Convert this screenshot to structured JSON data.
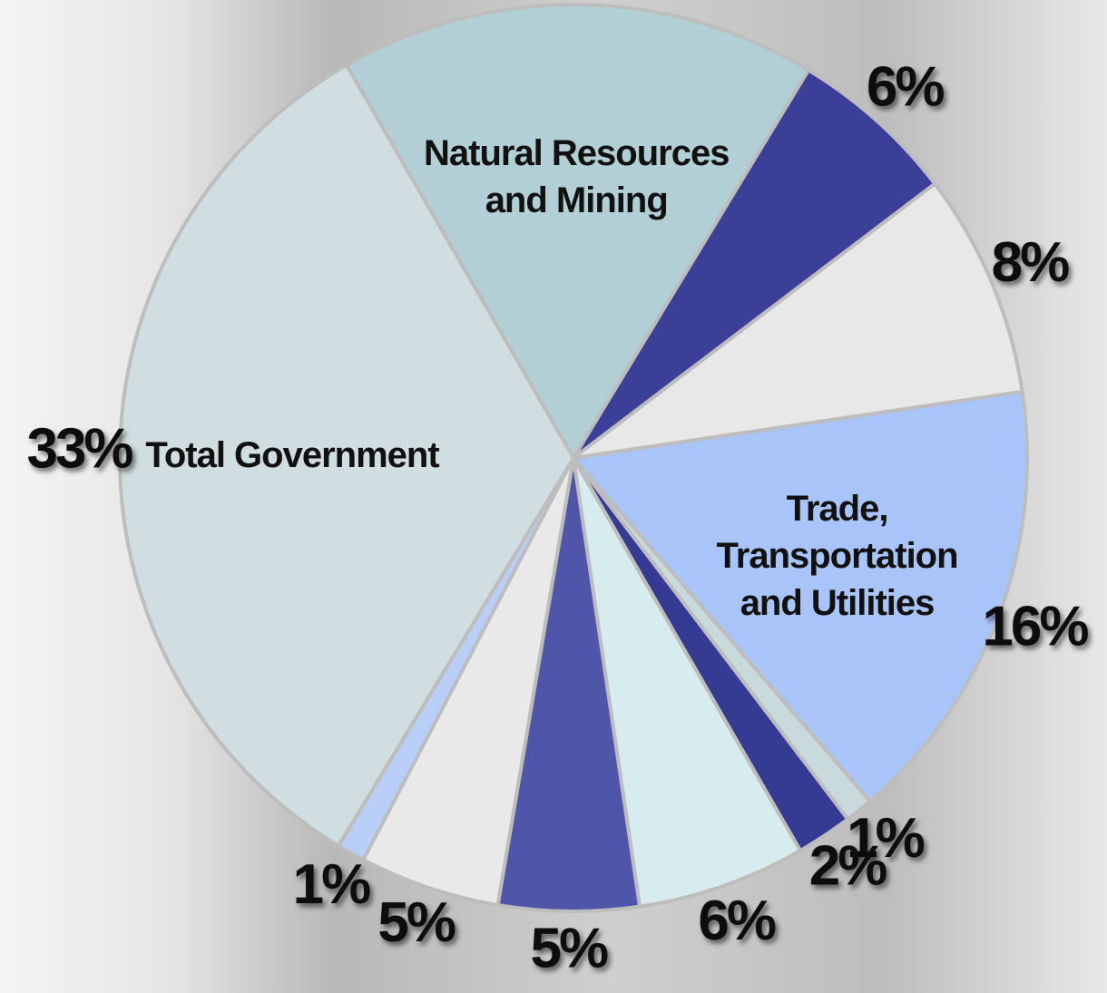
{
  "chart_data": {
    "type": "pie",
    "categories": [
      "Natural Resources and Mining",
      null,
      null,
      "Trade, Transportation and Utilities",
      null,
      null,
      null,
      null,
      null,
      null,
      "Total Government"
    ],
    "values": [
      17,
      6,
      8,
      16,
      1,
      2,
      6,
      5,
      5,
      1,
      33
    ],
    "value_labels": [
      null,
      "6%",
      "8%",
      "16%",
      "1%",
      "2%",
      "6%",
      "5%",
      "5%",
      "1%",
      "33%"
    ],
    "colors": [
      "#b1cfd4",
      "#3b3f98",
      "#e8e8e8",
      "#a9c4f8",
      "#c9dadc",
      "#353a92",
      "#d6ecee",
      "#4f55a8",
      "#e9e9e9",
      "#b9cff8",
      "#d1dee1"
    ]
  }
}
